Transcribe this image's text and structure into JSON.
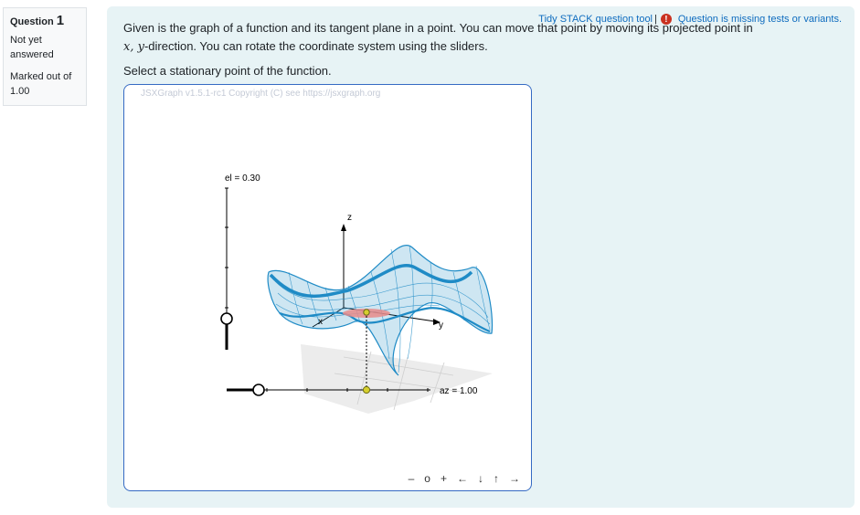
{
  "info": {
    "question_label": "Question",
    "question_number": "1",
    "state": "Not yet answered",
    "mark": "Marked out of 1.00"
  },
  "tools": {
    "tidy_link": "Tidy STACK question tool",
    "separator": "|",
    "warning_link": "Question is missing tests or variants.",
    "warning_icon": "exclamation-circle-icon",
    "warning_color": "#ca3120",
    "link_color": "#0f6cbf"
  },
  "question": {
    "text_a": "Given is the graph of a function and its tangent plane in a point. You can move that point by moving its projected point in ",
    "math_xy": "x, y",
    "text_b": "-direction. You can rotate the coordinate system using the sliders.",
    "prompt": "Select a stationary point of the function."
  },
  "board": {
    "copyright": "JSXGraph v1.5.1-rc1 Copyright (C) see https://jsxgraph.org",
    "slider_el_label": "el = 0.30",
    "slider_az_label": "az = 1.00",
    "axis_z": "z",
    "axis_x": "x",
    "axis_y": "y",
    "border_color": "#356ac3",
    "surface_color": "#1f8bc6",
    "navbar": [
      "–",
      "o",
      "+",
      "←",
      "↓",
      "↑",
      "→"
    ]
  }
}
